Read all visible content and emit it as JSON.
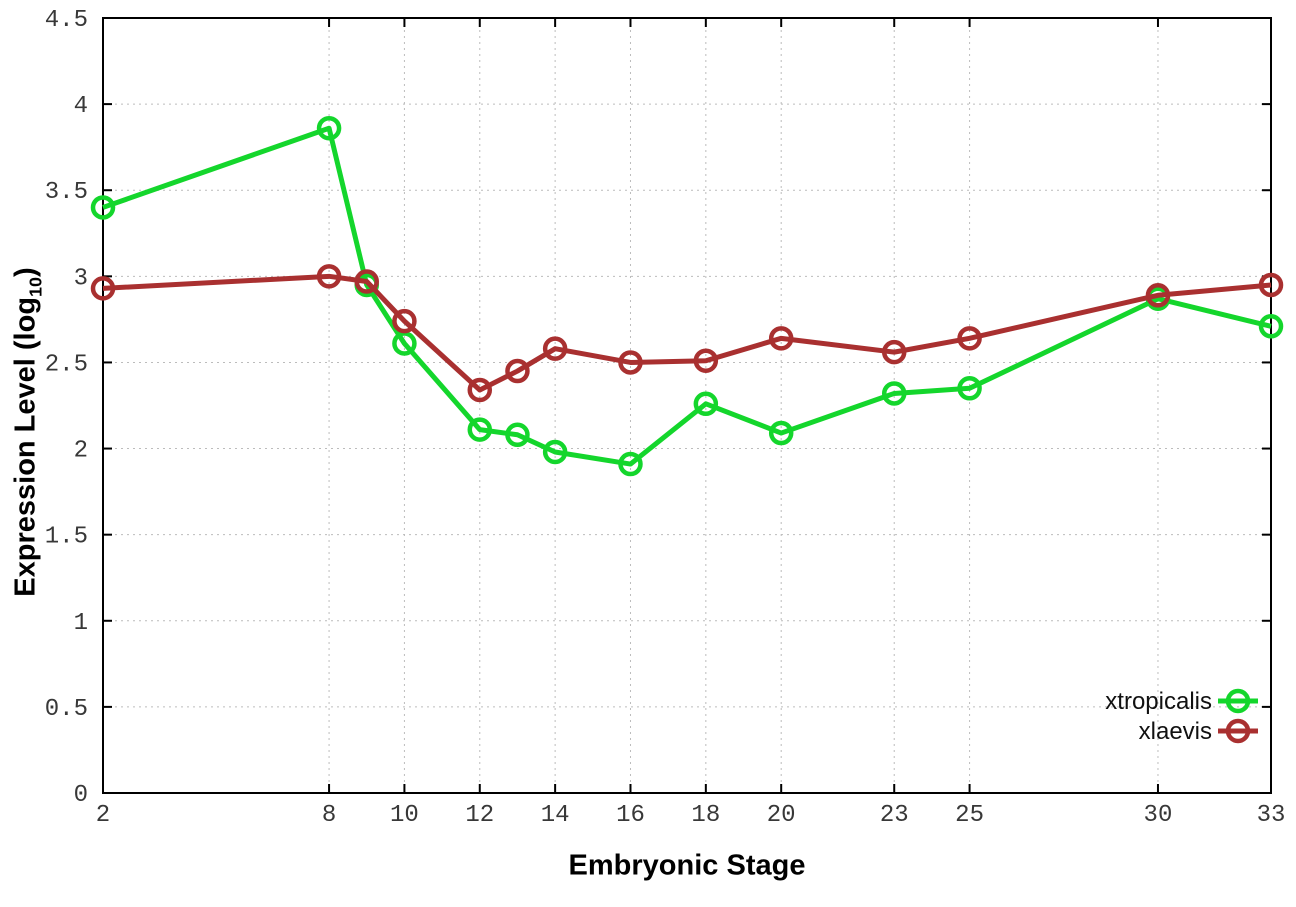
{
  "chart_data": {
    "type": "line",
    "title": "",
    "xlabel": "Embryonic Stage",
    "ylabel": "Expression Level (log10)",
    "ylabel_parts": {
      "prefix": "Expression Level (log",
      "subscript": "10",
      "suffix": ")"
    },
    "x": [
      2,
      8,
      9,
      10,
      12,
      13,
      14,
      16,
      18,
      20,
      23,
      25,
      30,
      33
    ],
    "series": [
      {
        "name": "xtropicalis",
        "color": "#14d62c",
        "values": [
          3.4,
          3.86,
          2.95,
          2.61,
          2.11,
          2.08,
          1.98,
          1.91,
          2.26,
          2.09,
          2.32,
          2.35,
          2.87,
          2.71
        ]
      },
      {
        "name": "xlaevis",
        "color": "#a93030",
        "values": [
          2.93,
          3.0,
          2.97,
          2.74,
          2.34,
          2.45,
          2.58,
          2.5,
          2.51,
          2.64,
          2.56,
          2.64,
          2.89,
          2.95
        ]
      }
    ],
    "xlim": [
      2,
      33
    ],
    "ylim": [
      0,
      4.5
    ],
    "x_ticks": [
      2,
      8,
      10,
      12,
      14,
      16,
      18,
      20,
      23,
      25,
      30,
      33
    ],
    "x_tick_labels": [
      "2",
      "8",
      "10",
      "12",
      "14",
      "16",
      "18",
      "20",
      "23",
      "25",
      "30",
      "33"
    ],
    "y_ticks": [
      0,
      0.5,
      1,
      1.5,
      2,
      2.5,
      3,
      3.5,
      4,
      4.5
    ],
    "y_tick_labels": [
      "0",
      "0.5",
      "1",
      "1.5",
      "2",
      "2.5",
      "3",
      "3.5",
      "4",
      "4.5"
    ],
    "grid": true,
    "grid_style": "dotted",
    "grid_color": "#bcbcbc",
    "axis_color": "#000000",
    "tick_label_color": "#383838",
    "background_color": "#ffffff",
    "marker": "open-circle",
    "legend_position": "bottom-right",
    "legend_entries": [
      "xtropicalis",
      "xlaevis"
    ]
  }
}
